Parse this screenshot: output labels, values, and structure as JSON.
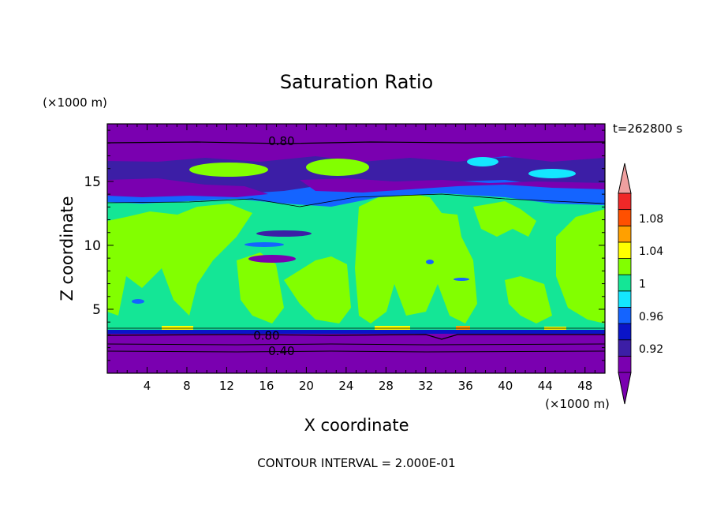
{
  "chart_data": {
    "type": "heatmap",
    "title": "Saturation Ratio",
    "xlabel": "X coordinate",
    "ylabel": "Z coordinate",
    "x_unit": "(×1000 m)",
    "y_unit": "(×1000 m)",
    "time_label": "t=262800 s",
    "footer": "CONTOUR INTERVAL = 2.000E-01",
    "xlim": [
      0,
      50
    ],
    "ylim": [
      0,
      19.5
    ],
    "x_ticks": [
      4,
      8,
      12,
      16,
      20,
      24,
      28,
      32,
      36,
      40,
      44,
      48
    ],
    "y_ticks": [
      5,
      10,
      15
    ],
    "contour_labels": [
      {
        "text": "0.80",
        "x": 17.5,
        "z": 18.2
      },
      {
        "text": "0.80",
        "x": 16.0,
        "z": 3.0
      },
      {
        "text": "0.40",
        "x": 17.5,
        "z": 1.8
      }
    ],
    "colorbar": {
      "levels": [
        "",
        "0.92",
        "",
        "0.96",
        "",
        "1",
        "",
        "1.04",
        "",
        "1.08",
        ""
      ],
      "colors": [
        "#7a00b0",
        "#3c1ea6",
        "#0a14c8",
        "#1464ff",
        "#14e6ff",
        "#14e696",
        "#82ff00",
        "#ffff00",
        "#ffa000",
        "#ff5000",
        "#f02828"
      ],
      "over_color": "#f0a0a0",
      "under_color": "#7a00b0"
    },
    "bands": [
      {
        "z0": 0,
        "z1": 3.2,
        "value": "<0.90"
      },
      {
        "z0": 3.2,
        "z1": 3.5,
        "value": "0.96"
      },
      {
        "z0": 3.5,
        "z1": 14.0,
        "value": "0.98–1.00"
      },
      {
        "z0": 14.0,
        "z1": 17.0,
        "value": "0.90–0.98"
      },
      {
        "z0": 17.0,
        "z1": 19.5,
        "value": "<0.90"
      }
    ]
  }
}
